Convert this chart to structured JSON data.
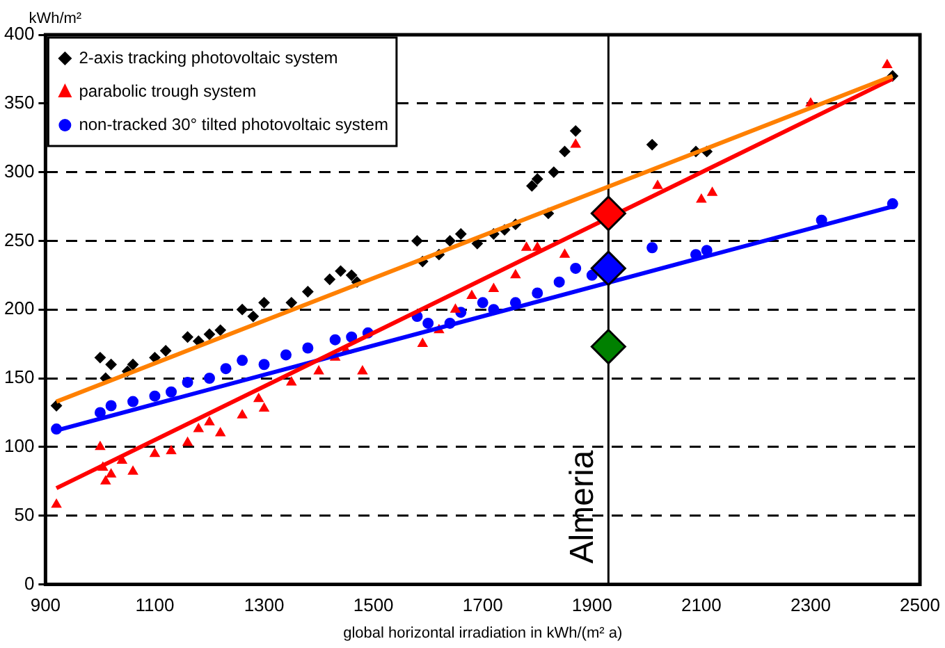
{
  "chart_data": {
    "type": "scatter",
    "xlabel": "global horizontal irradiation in kWh/(m² a)",
    "ylabel": "kWh/m²",
    "xlim": [
      900,
      2500
    ],
    "xticks": [
      900,
      1100,
      1300,
      1500,
      1700,
      1900,
      2100,
      2300,
      2500
    ],
    "ylim": [
      0,
      400
    ],
    "yticks": [
      0,
      50,
      100,
      150,
      200,
      250,
      300,
      350,
      400
    ],
    "grid": "y",
    "legend": "top left",
    "ref_lines": [
      {
        "axis": "x",
        "value": 1930,
        "label": "Almeria",
        "color": "#000000"
      }
    ],
    "series": [
      {
        "name": "2-axis tracking photovoltaic system",
        "color": "#000000",
        "marker": "diamond",
        "x": [
          920,
          1000,
          1010,
          1020,
          1050,
          1060,
          1100,
          1120,
          1160,
          1180,
          1200,
          1220,
          1260,
          1280,
          1300,
          1350,
          1380,
          1420,
          1440,
          1460,
          1470,
          1580,
          1590,
          1620,
          1640,
          1660,
          1690,
          1720,
          1740,
          1760,
          1790,
          1800,
          1820,
          1830,
          1850,
          1870,
          2010,
          2090,
          2110,
          2450
        ],
        "values": [
          130,
          165,
          150,
          160,
          155,
          160,
          165,
          170,
          180,
          177,
          182,
          185,
          200,
          195,
          205,
          205,
          213,
          222,
          228,
          225,
          220,
          250,
          235,
          240,
          250,
          255,
          248,
          255,
          258,
          262,
          290,
          295,
          270,
          300,
          315,
          330,
          320,
          315,
          315,
          370
        ]
      },
      {
        "name": "parabolic trough system",
        "color": "#ff0000",
        "marker": "triangle",
        "x": [
          920,
          1000,
          1005,
          1010,
          1020,
          1040,
          1060,
          1100,
          1130,
          1160,
          1180,
          1200,
          1220,
          1260,
          1290,
          1300,
          1350,
          1400,
          1430,
          1450,
          1480,
          1590,
          1620,
          1650,
          1680,
          1720,
          1760,
          1780,
          1800,
          1850,
          1870,
          2020,
          2100,
          2120,
          2300,
          2440
        ],
        "values": [
          58,
          100,
          85,
          75,
          80,
          90,
          82,
          95,
          97,
          103,
          113,
          118,
          110,
          123,
          135,
          128,
          147,
          155,
          165,
          170,
          155,
          175,
          185,
          200,
          210,
          215,
          225,
          245,
          245,
          240,
          320,
          290,
          280,
          285,
          350,
          378
        ]
      },
      {
        "name": "non-tracked 30° tilted photovoltaic system",
        "color": "#0000ff",
        "marker": "circle",
        "x": [
          920,
          1000,
          1020,
          1060,
          1100,
          1130,
          1160,
          1200,
          1230,
          1260,
          1300,
          1340,
          1380,
          1430,
          1460,
          1490,
          1580,
          1600,
          1640,
          1660,
          1700,
          1720,
          1760,
          1800,
          1840,
          1870,
          1900,
          2010,
          2090,
          2110,
          2320,
          2450
        ],
        "values": [
          113,
          125,
          130,
          133,
          137,
          140,
          147,
          150,
          157,
          163,
          160,
          167,
          172,
          178,
          180,
          183,
          195,
          190,
          190,
          198,
          205,
          200,
          205,
          212,
          220,
          230,
          225,
          245,
          240,
          243,
          265,
          277
        ]
      },
      {
        "type": "line",
        "color": "#ff8000",
        "marker": "none",
        "x": [
          920,
          2450
        ],
        "values": [
          133,
          370
        ]
      },
      {
        "type": "line",
        "color": "#ff0000",
        "marker": "none",
        "x": [
          920,
          2450
        ],
        "values": [
          70,
          368
        ]
      },
      {
        "type": "line",
        "color": "#0000ff",
        "marker": "none",
        "x": [
          920,
          2450
        ],
        "values": [
          112,
          275
        ]
      },
      {
        "color": "#ff0000",
        "marker": "diamond",
        "x": [
          1930
        ],
        "values": [
          270
        ]
      },
      {
        "color": "#0000ff",
        "marker": "diamond",
        "x": [
          1930
        ],
        "values": [
          230
        ]
      },
      {
        "color": "#008000",
        "marker": "diamond",
        "x": [
          1930
        ],
        "values": [
          173
        ]
      }
    ]
  }
}
